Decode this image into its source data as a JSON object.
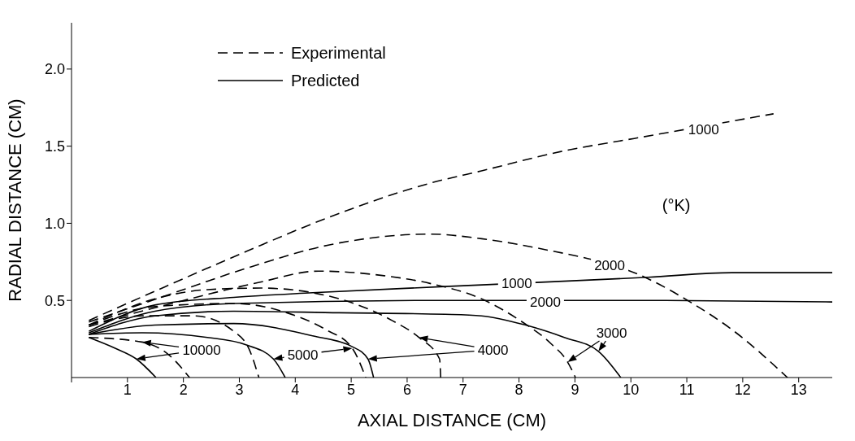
{
  "chart_data": {
    "type": "line",
    "xlabel": "AXIAL DISTANCE (CM)",
    "ylabel": "RADIAL DISTANCE (CM)",
    "xlim": [
      0,
      13.6
    ],
    "ylim": [
      0,
      2.3
    ],
    "xticks": [
      {
        "value": 0,
        "label": null
      },
      1,
      2,
      3,
      4,
      5,
      6,
      7,
      8,
      9,
      10,
      11,
      12,
      13
    ],
    "yticks": [
      0.5,
      {
        "value": 1,
        "label": "1.0"
      },
      1.5,
      {
        "value": 2,
        "label": "2.0"
      }
    ],
    "legend": "top left",
    "marker": "none",
    "annotations": [
      {
        "text": "1000",
        "x": 11.3,
        "y": 1.61
      },
      {
        "text": "2000",
        "x": 9.62,
        "y": 0.73
      },
      {
        "text": "1000",
        "x": 7.96,
        "y": 0.61
      },
      {
        "text": "2000",
        "x": 8.47,
        "y": 0.49
      },
      "3000",
      "4000",
      "5000",
      {
        "text": "10000",
        "x": 1.26,
        "y": 0.23
      },
      "(°K)"
    ],
    "series": [
      {
        "name": "Experimental",
        "color": "#000000",
        "line_style": "dashed",
        "x": [
          0.31,
          1.68,
          3.14,
          4.61,
          6.41,
          7.33,
          8.81,
          10.06,
          12.55
        ],
        "values": [
          0.37,
          0.59,
          0.82,
          1.04,
          1.26,
          1.34,
          1.47,
          1.55,
          1.71
        ]
      },
      {
        "color": "#000000",
        "line_style": "dashed",
        "x": [
          0.31,
          1.68,
          3.14,
          4.61,
          6.41,
          7.33,
          8.32,
          10.31,
          11.06,
          11.81,
          12.8
        ],
        "values": [
          0.36,
          0.53,
          0.71,
          0.86,
          0.93,
          0.9,
          0.84,
          0.64,
          0.49,
          0.31,
          0
        ]
      },
      {
        "color": "#000000",
        "line_style": "dashed",
        "x": [
          0.31,
          1.68,
          3.39,
          4.41,
          5.59,
          6.41,
          7.33,
          8.06,
          8.57,
          8.87,
          9.01
        ],
        "values": [
          0.34,
          0.47,
          0.62,
          0.69,
          0.66,
          0.61,
          0.51,
          0.36,
          0.22,
          0.1,
          0
        ]
      },
      {
        "color": "#000000",
        "line_style": "dashed",
        "x": [
          0.31,
          1.49,
          2.43,
          3.38,
          4.31,
          4.79,
          5.73,
          6.21,
          6.58,
          6.6
        ],
        "values": [
          0.34,
          0.51,
          0.57,
          0.58,
          0.55,
          0.51,
          0.37,
          0.26,
          0.12,
          0
        ]
      },
      {
        "color": "#000000",
        "line_style": "dashed",
        "x": [
          0.31,
          1.49,
          2.9,
          3.85,
          4.55,
          5.02,
          5.26
        ],
        "values": [
          0.34,
          0.46,
          0.48,
          0.42,
          0.31,
          0.19,
          0
        ]
      },
      {
        "color": "#000000",
        "line_style": "dashed",
        "x": [
          0.31,
          1.26,
          2.19,
          2.9,
          3.18,
          3.35
        ],
        "values": [
          0.33,
          0.4,
          0.4,
          0.3,
          0.18,
          0
        ]
      },
      {
        "color": "#000000",
        "line_style": "dashed",
        "x": [
          0.31,
          1.26,
          1.73,
          2.11
        ],
        "values": [
          0.26,
          0.23,
          0.15,
          0
        ]
      },
      {
        "name": "Predicted",
        "color": "#000000",
        "line_style": "solid",
        "x": [
          0.31,
          1.49,
          2.9,
          4.31,
          6.68,
          10.31,
          11.81,
          13.6
        ],
        "values": [
          0.3,
          0.47,
          0.52,
          0.55,
          0.59,
          0.65,
          0.68,
          0.68
        ]
      },
      {
        "color": "#000000",
        "line_style": "solid",
        "x": [
          0.31,
          1.49,
          2.9,
          6.68,
          10.5,
          13.6
        ],
        "values": [
          0.29,
          0.43,
          0.48,
          0.5,
          0.5,
          0.49
        ]
      },
      {
        "color": "#000000",
        "line_style": "solid",
        "x": [
          0.31,
          1.49,
          2.9,
          4.79,
          6.68,
          7.33,
          8.12,
          8.81,
          9.42,
          9.82
        ],
        "values": [
          0.28,
          0.4,
          0.43,
          0.42,
          0.41,
          0.4,
          0.34,
          0.26,
          0.17,
          0
        ]
      },
      {
        "color": "#000000",
        "line_style": "solid",
        "x": [
          0.31,
          1.49,
          2.9,
          4.31,
          5.02,
          5.3,
          5.4
        ],
        "values": [
          0.28,
          0.34,
          0.35,
          0.27,
          0.2,
          0.12,
          0
        ]
      },
      {
        "color": "#000000",
        "line_style": "solid",
        "x": [
          0.31,
          1.26,
          2.43,
          3.14,
          3.61,
          3.82
        ],
        "values": [
          0.28,
          0.29,
          0.26,
          0.21,
          0.12,
          0
        ]
      },
      {
        "color": "#000000",
        "line_style": "solid",
        "x": [
          0.31,
          0.78,
          1.16,
          1.51
        ],
        "values": [
          0.26,
          0.19,
          0.12,
          0
        ]
      }
    ]
  }
}
